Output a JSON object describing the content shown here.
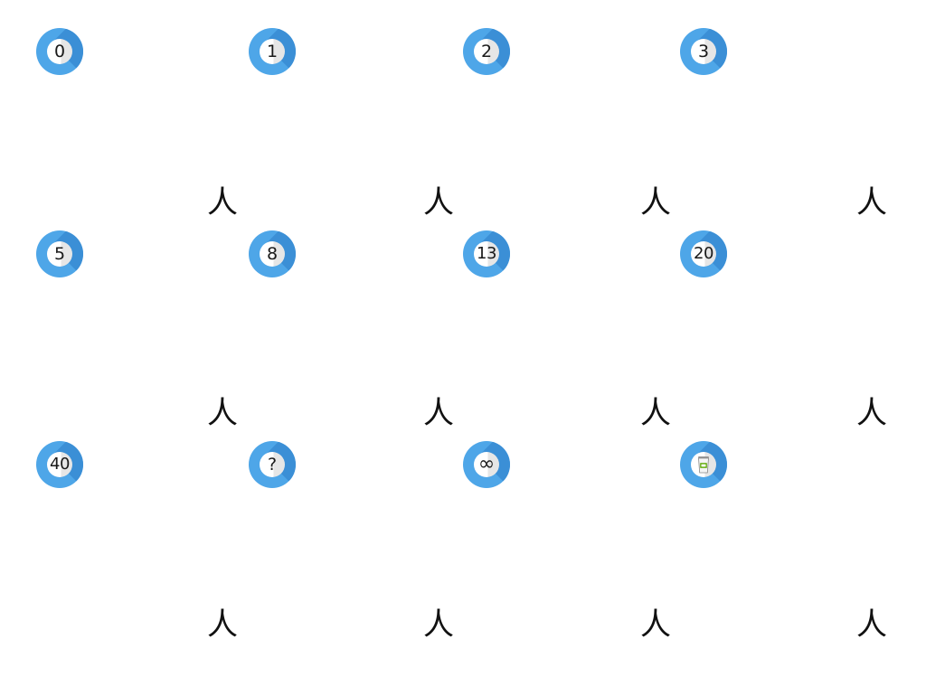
{
  "cards": [
    {
      "label": "0"
    },
    {
      "label": "1"
    },
    {
      "label": "2"
    },
    {
      "label": "3"
    },
    {
      "label": "5"
    },
    {
      "label": "8"
    },
    {
      "label": "13"
    },
    {
      "label": "20"
    },
    {
      "label": "40"
    },
    {
      "label": "?"
    },
    {
      "label": "∞"
    },
    {
      "label": "",
      "icon": "coffee-cup-icon"
    }
  ],
  "person_glyph": "人",
  "colors": {
    "card_blue": "#4ea6e8",
    "card_shadow": "#3b8fd6",
    "face_light": "#ffffff",
    "face_shade": "#e6e6e6",
    "coffee_green": "#7ab832"
  }
}
